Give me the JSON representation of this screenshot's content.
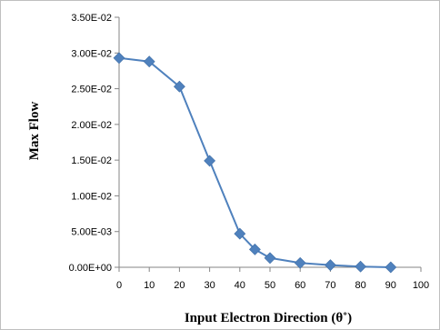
{
  "chart_data": {
    "type": "line",
    "xlabel": "Input Electron Direction (θ˚)",
    "ylabel": "Max Flow",
    "xlim": [
      0,
      100
    ],
    "ylim": [
      0,
      0.035
    ],
    "x_ticks": [
      0,
      10,
      20,
      30,
      40,
      50,
      60,
      70,
      80,
      90,
      100
    ],
    "y_ticks": [
      0,
      0.005,
      0.01,
      0.015,
      0.02,
      0.025,
      0.03,
      0.035
    ],
    "x_tick_labels": [
      "0",
      "10",
      "20",
      "30",
      "40",
      "50",
      "60",
      "70",
      "80",
      "90",
      "100"
    ],
    "y_tick_labels": [
      "0.00E+00",
      "5.00E-03",
      "1.00E-02",
      "1.50E-02",
      "2.00E-02",
      "2.50E-02",
      "3.00E-02",
      "3.50E-02"
    ],
    "grid": false,
    "legend": "none",
    "marker": "diamond",
    "series": [
      {
        "color": "#4f81bd",
        "x": [
          0,
          10,
          20,
          30,
          40,
          45,
          50,
          60,
          70,
          80,
          90
        ],
        "y": [
          0.0293,
          0.0288,
          0.0253,
          0.0149,
          0.0047,
          0.0025,
          0.0013,
          0.0006,
          0.0003,
          0.0001,
          0.0
        ]
      }
    ]
  }
}
